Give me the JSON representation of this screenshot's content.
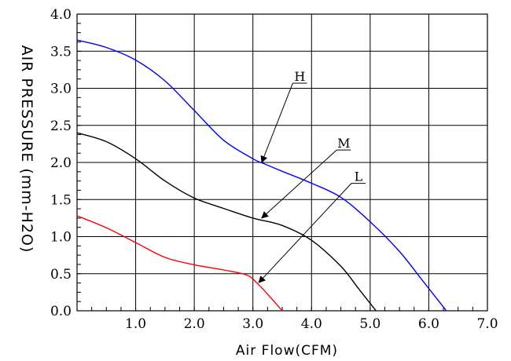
{
  "chart_data": {
    "type": "line",
    "xlabel": "Air Flow(CFM)",
    "ylabel": "AIR PRESSURE (mm-H2O)",
    "xlim": [
      0,
      7
    ],
    "ylim": [
      0,
      4
    ],
    "x_ticks": [
      "1.0",
      "2.0",
      "3.0",
      "4.0",
      "5.0",
      "6.0",
      "7.0"
    ],
    "y_ticks": [
      "0.0",
      "0.5",
      "1.0",
      "1.5",
      "2.0",
      "2.5",
      "3.0",
      "3.5",
      "4.0"
    ],
    "grid": true,
    "legend": "none",
    "series": [
      {
        "name": "H",
        "color": "#0000ff",
        "x": [
          0.0,
          0.5,
          1.0,
          1.5,
          2.0,
          2.5,
          3.0,
          3.2,
          3.5,
          4.0,
          4.5,
          5.0,
          5.5,
          5.9,
          6.1,
          6.3
        ],
        "y": [
          3.65,
          3.55,
          3.38,
          3.1,
          2.7,
          2.3,
          2.05,
          1.98,
          1.88,
          1.72,
          1.53,
          1.2,
          0.8,
          0.4,
          0.2,
          0.0
        ]
      },
      {
        "name": "M",
        "color": "#000000",
        "x": [
          0.0,
          0.5,
          1.0,
          1.5,
          2.0,
          2.5,
          3.0,
          3.5,
          4.0,
          4.5,
          4.8,
          5.0,
          5.1
        ],
        "y": [
          2.4,
          2.28,
          2.05,
          1.75,
          1.52,
          1.38,
          1.25,
          1.15,
          0.95,
          0.6,
          0.3,
          0.1,
          0.0
        ]
      },
      {
        "name": "L",
        "color": "#ff0000",
        "x": [
          0.0,
          0.5,
          1.0,
          1.5,
          2.0,
          2.5,
          2.9,
          3.1,
          3.3,
          3.5
        ],
        "y": [
          1.28,
          1.12,
          0.92,
          0.72,
          0.62,
          0.55,
          0.48,
          0.35,
          0.18,
          0.0
        ]
      }
    ],
    "annotations": [
      {
        "label": "H",
        "label_at": [
          3.8,
          3.1
        ],
        "arrow_to": [
          3.15,
          2.0
        ]
      },
      {
        "label": "M",
        "label_at": [
          4.55,
          2.2
        ],
        "arrow_to": [
          3.15,
          1.25
        ]
      },
      {
        "label": "L",
        "label_at": [
          4.8,
          1.75
        ],
        "arrow_to": [
          3.1,
          0.38
        ]
      }
    ]
  }
}
